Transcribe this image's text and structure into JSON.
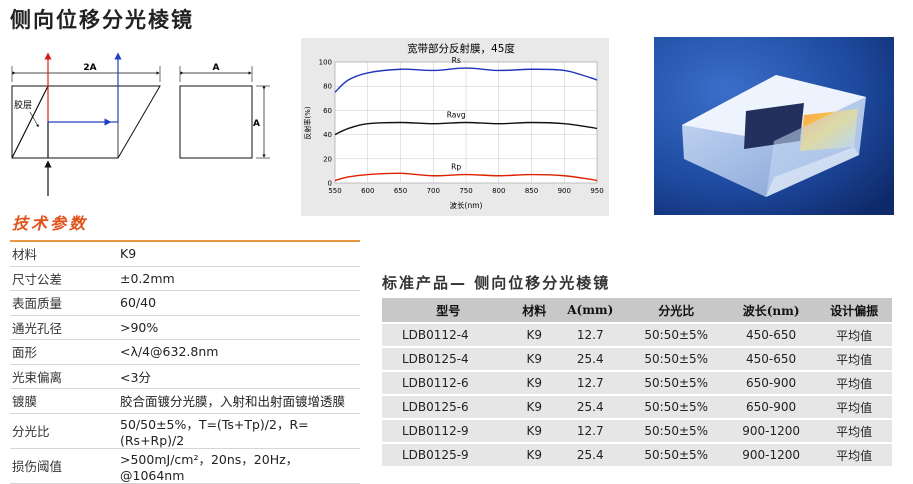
{
  "title": "侧向位移分光棱镜",
  "diagram": {
    "dim_2a": "2A",
    "dim_a_top": "A",
    "dim_a_side": "A",
    "glue_label": "胶层"
  },
  "chart_data": {
    "type": "line",
    "title": "宽带部分反射膜，45度",
    "xlabel": "波长(nm)",
    "ylabel": "反射率(%)",
    "xlim": [
      550,
      950
    ],
    "ylim": [
      0,
      100
    ],
    "x_ticks": [
      550,
      600,
      650,
      700,
      750,
      800,
      850,
      900,
      950
    ],
    "y_ticks": [
      0,
      20,
      40,
      60,
      80,
      100
    ],
    "grid": true,
    "series": [
      {
        "name": "Rs",
        "color": "#2233bb",
        "x": [
          550,
          570,
          600,
          650,
          700,
          750,
          800,
          850,
          900,
          940,
          950
        ],
        "y": [
          75,
          85,
          91,
          94,
          93,
          95,
          93,
          94,
          93,
          87,
          85
        ]
      },
      {
        "name": "Ravg",
        "color": "#111111",
        "x": [
          550,
          570,
          600,
          650,
          700,
          750,
          800,
          850,
          900,
          940,
          950
        ],
        "y": [
          40,
          45,
          49,
          50,
          49,
          50,
          49,
          50,
          49,
          46,
          45
        ]
      },
      {
        "name": "Rp",
        "color": "#dd2200",
        "x": [
          550,
          570,
          600,
          650,
          700,
          750,
          800,
          850,
          900,
          940,
          950
        ],
        "y": [
          2,
          5,
          7,
          8,
          6,
          7,
          6,
          7,
          6,
          3,
          2
        ]
      }
    ]
  },
  "specs_heading": "技术参数",
  "specs": [
    {
      "key": "材料",
      "value": "K9"
    },
    {
      "key": "尺寸公差",
      "value": "±0.2mm"
    },
    {
      "key": "表面质量",
      "value": "60/40"
    },
    {
      "key": "通光孔径",
      "value": ">90%"
    },
    {
      "key": "面形",
      "value": "<λ/4@632.8nm"
    },
    {
      "key": "光束偏离",
      "value": "<3分"
    },
    {
      "key": "镀膜",
      "value": "胶合面镀分光膜，入射和出射面镀增透膜"
    },
    {
      "key": "分光比",
      "value": "50/50±5%，T=(Ts+Tp)/2，R=(Rs+Rp)/2"
    },
    {
      "key": "损伤阈值",
      "value": ">500mJ/cm²，20ns，20Hz，@1064nm"
    }
  ],
  "products_heading": "标准产品— 侧向位移分光棱镜",
  "products": {
    "headers": [
      "型号",
      "材料",
      "A(mm)",
      "分光比",
      "波长(nm)",
      "设计偏振"
    ],
    "rows": [
      [
        "LDB0112-4",
        "K9",
        "12.7",
        "50:50±5%",
        "450-650",
        "平均值"
      ],
      [
        "LDB0125-4",
        "K9",
        "25.4",
        "50:50±5%",
        "450-650",
        "平均值"
      ],
      [
        "LDB0112-6",
        "K9",
        "12.7",
        "50:50±5%",
        "650-900",
        "平均值"
      ],
      [
        "LDB0125-6",
        "K9",
        "25.4",
        "50:50±5%",
        "650-900",
        "平均值"
      ],
      [
        "LDB0112-9",
        "K9",
        "12.7",
        "50:50±5%",
        "900-1200",
        "平均值"
      ],
      [
        "LDB0125-9",
        "K9",
        "25.4",
        "50:50±5%",
        "900-1200",
        "平均值"
      ]
    ]
  }
}
